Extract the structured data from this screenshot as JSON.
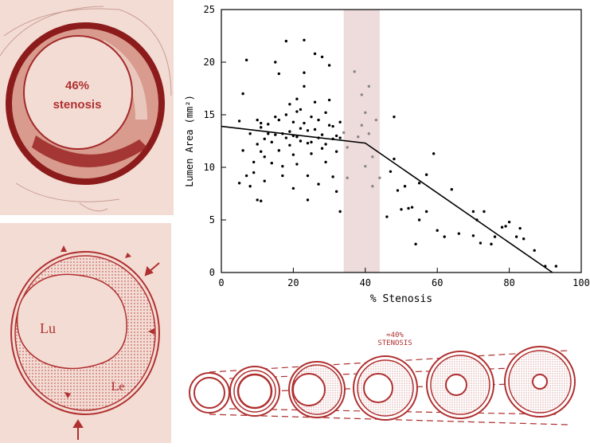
{
  "histology": {
    "label_line1": "46%",
    "label_line2": "stenosis",
    "color": "#b03030"
  },
  "schematic": {
    "lumen_label": "Lu",
    "lesion_label": "Le",
    "color": "#b03030"
  },
  "chart_data": {
    "type": "scatter",
    "xlabel": "% Stenosis",
    "ylabel": "Lumen Area (mm²)",
    "xlim": [
      0,
      100
    ],
    "ylim": [
      0,
      25
    ],
    "x_ticks": [
      0,
      20,
      40,
      60,
      80,
      100
    ],
    "y_ticks": [
      0,
      5,
      10,
      15,
      20,
      25
    ],
    "grid": false,
    "highlight_band": {
      "x_range": [
        34,
        44
      ],
      "color": "#e8cfcf"
    },
    "fit_line": {
      "x": [
        0,
        40,
        92
      ],
      "y": [
        13.9,
        12.3,
        0
      ]
    },
    "points": [
      [
        5,
        14.4
      ],
      [
        5,
        8.5
      ],
      [
        6,
        11.6
      ],
      [
        6,
        17.0
      ],
      [
        7,
        9.2
      ],
      [
        7,
        20.2
      ],
      [
        8,
        13.2
      ],
      [
        8,
        8.2
      ],
      [
        9,
        9.5
      ],
      [
        9,
        10.5
      ],
      [
        10,
        12.2
      ],
      [
        10,
        14.5
      ],
      [
        10,
        6.9
      ],
      [
        11,
        11.5
      ],
      [
        11,
        13.8
      ],
      [
        11,
        14.2
      ],
      [
        11,
        6.8
      ],
      [
        12,
        12.7
      ],
      [
        12,
        11.0
      ],
      [
        12,
        8.7
      ],
      [
        13,
        13.2
      ],
      [
        13,
        14.1
      ],
      [
        14,
        12.4
      ],
      [
        14,
        10.4
      ],
      [
        15,
        13.1
      ],
      [
        15,
        14.8
      ],
      [
        15,
        20.0
      ],
      [
        16,
        14.5
      ],
      [
        16,
        18.9
      ],
      [
        16,
        11.6
      ],
      [
        17,
        13.2
      ],
      [
        17,
        10.1
      ],
      [
        17,
        9.2
      ],
      [
        18,
        15.0
      ],
      [
        18,
        22.0
      ],
      [
        18,
        12.8
      ],
      [
        19,
        12.1
      ],
      [
        19,
        13.4
      ],
      [
        19,
        16.0
      ],
      [
        20,
        14.3
      ],
      [
        20,
        13.0
      ],
      [
        20,
        11.2
      ],
      [
        20,
        8.0
      ],
      [
        21,
        12.9
      ],
      [
        21,
        15.3
      ],
      [
        21,
        16.5
      ],
      [
        21,
        10.3
      ],
      [
        22,
        12.5
      ],
      [
        22,
        13.7
      ],
      [
        22,
        15.5
      ],
      [
        23,
        14.2
      ],
      [
        23,
        22.1
      ],
      [
        23,
        19.0
      ],
      [
        23,
        17.7
      ],
      [
        24,
        13.5
      ],
      [
        24,
        12.3
      ],
      [
        24,
        9.2
      ],
      [
        24,
        6.9
      ],
      [
        25,
        12.4
      ],
      [
        25,
        14.8
      ],
      [
        25,
        11.3
      ],
      [
        26,
        13.6
      ],
      [
        26,
        20.8
      ],
      [
        26,
        16.2
      ],
      [
        27,
        12.8
      ],
      [
        27,
        14.5
      ],
      [
        27,
        8.4
      ],
      [
        28,
        13.1
      ],
      [
        28,
        11.8
      ],
      [
        28,
        20.5
      ],
      [
        29,
        15.2
      ],
      [
        29,
        10.5
      ],
      [
        29,
        12.2
      ],
      [
        30,
        14.0
      ],
      [
        30,
        16.4
      ],
      [
        30,
        19.7
      ],
      [
        31,
        13.9
      ],
      [
        31,
        12.7
      ],
      [
        31,
        9.1
      ],
      [
        32,
        13.0
      ],
      [
        32,
        11.5
      ],
      [
        32,
        7.7
      ],
      [
        33,
        12.8
      ],
      [
        33,
        14.3
      ],
      [
        33,
        5.8
      ],
      [
        34,
        13.3
      ],
      [
        35,
        11.9
      ],
      [
        35,
        9.0
      ],
      [
        37,
        19.1
      ],
      [
        38,
        12.9
      ],
      [
        39,
        14.0
      ],
      [
        39,
        16.9
      ],
      [
        40,
        15.2
      ],
      [
        40,
        10.1
      ],
      [
        41,
        13.2
      ],
      [
        41,
        17.7
      ],
      [
        42,
        11.0
      ],
      [
        42,
        8.2
      ],
      [
        43,
        14.5
      ],
      [
        44,
        9.0
      ],
      [
        46,
        5.3
      ],
      [
        47,
        9.6
      ],
      [
        48,
        14.8
      ],
      [
        48,
        10.8
      ],
      [
        49,
        7.8
      ],
      [
        50,
        6.0
      ],
      [
        51,
        8.2
      ],
      [
        52,
        6.1
      ],
      [
        53,
        6.2
      ],
      [
        54,
        2.7
      ],
      [
        55,
        5.0
      ],
      [
        55,
        8.5
      ],
      [
        57,
        9.3
      ],
      [
        57,
        5.8
      ],
      [
        59,
        11.3
      ],
      [
        60,
        4.0
      ],
      [
        62,
        3.4
      ],
      [
        64,
        7.9
      ],
      [
        66,
        3.7
      ],
      [
        70,
        3.5
      ],
      [
        70,
        5.8
      ],
      [
        71,
        5.0
      ],
      [
        72,
        2.8
      ],
      [
        73,
        5.8
      ],
      [
        75,
        2.7
      ],
      [
        76,
        3.4
      ],
      [
        78,
        4.3
      ],
      [
        79,
        4.4
      ],
      [
        80,
        4.8
      ],
      [
        82,
        3.4
      ],
      [
        83,
        4.2
      ],
      [
        84,
        3.2
      ],
      [
        87,
        2.1
      ],
      [
        90,
        0.6
      ],
      [
        93,
        0.6
      ]
    ]
  },
  "vessel_series": {
    "annotation_line1": "≈40%",
    "annotation_line2": "STENOSIS",
    "color": "#b03030"
  }
}
